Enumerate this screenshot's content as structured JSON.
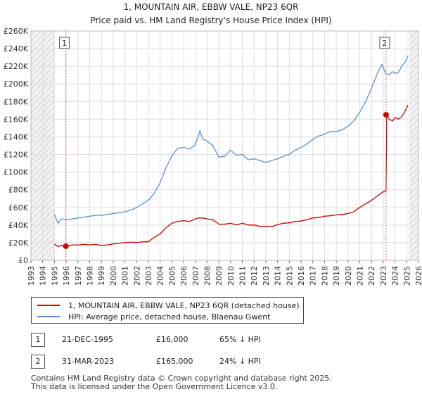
{
  "chart_data": {
    "type": "line",
    "title": "1, MOUNTAIN AIR, EBBW VALE, NP23 6QR",
    "subtitle": "Price paid vs. HM Land Registry's House Price Index (HPI)",
    "xlim": [
      1993,
      2026
    ],
    "ylim": [
      0,
      260000
    ],
    "x_ticks": [
      1993,
      1994,
      1995,
      1996,
      1997,
      1998,
      1999,
      2000,
      2001,
      2002,
      2003,
      2004,
      2005,
      2006,
      2007,
      2008,
      2009,
      2010,
      2011,
      2012,
      2013,
      2014,
      2015,
      2016,
      2017,
      2018,
      2019,
      2020,
      2021,
      2022,
      2023,
      2024,
      2025,
      2026
    ],
    "y_ticks": [
      {
        "value": 0,
        "label": "£0"
      },
      {
        "value": 20000,
        "label": "£20K"
      },
      {
        "value": 40000,
        "label": "£40K"
      },
      {
        "value": 60000,
        "label": "£60K"
      },
      {
        "value": 80000,
        "label": "£80K"
      },
      {
        "value": 100000,
        "label": "£100K"
      },
      {
        "value": 120000,
        "label": "£120K"
      },
      {
        "value": 140000,
        "label": "£140K"
      },
      {
        "value": 160000,
        "label": "£160K"
      },
      {
        "value": 180000,
        "label": "£180K"
      },
      {
        "value": 200000,
        "label": "£200K"
      },
      {
        "value": 220000,
        "label": "£220K"
      },
      {
        "value": 240000,
        "label": "£240K"
      },
      {
        "value": 260000,
        "label": "£260K"
      }
    ],
    "grid": true,
    "hatched_ranges": [
      [
        1993,
        1995.0
      ],
      [
        2025.2,
        2026
      ]
    ],
    "series": [
      {
        "name": "1, MOUNTAIN AIR, EBBW VALE, NP23 6QR (detached house)",
        "color": "#cc0000",
        "x": [
          1995.0,
          1995.3,
          1995.6,
          1995.97,
          1996.5,
          1997,
          1997.5,
          1998,
          1998.5,
          1999,
          1999.5,
          2000,
          2000.5,
          2001,
          2001.5,
          2002,
          2002.5,
          2003,
          2003.5,
          2004,
          2004.5,
          2005,
          2005.5,
          2006,
          2006.5,
          2007,
          2007.3,
          2007.6,
          2008,
          2008.5,
          2009,
          2009.5,
          2010,
          2010.5,
          2011,
          2011.5,
          2012,
          2012.5,
          2013,
          2013.5,
          2014,
          2014.5,
          2015,
          2015.5,
          2016,
          2016.5,
          2017,
          2017.5,
          2018,
          2018.5,
          2019,
          2019.5,
          2020,
          2020.5,
          2021,
          2021.5,
          2022,
          2022.5,
          2022.9,
          2023.24,
          2023.3,
          2023.5,
          2023.8,
          2024,
          2024.3,
          2024.6,
          2024.9,
          2025.1
        ],
        "y": [
          18500,
          15500,
          17000,
          16000,
          17500,
          17500,
          18000,
          17500,
          18000,
          17000,
          17500,
          18500,
          19500,
          20000,
          20500,
          20000,
          21000,
          21000,
          26000,
          30000,
          37000,
          42000,
          44000,
          45000,
          44000,
          47000,
          48000,
          48000,
          47000,
          46000,
          41000,
          41000,
          42000,
          40000,
          42000,
          40000,
          40000,
          38500,
          38500,
          38000,
          40500,
          42000,
          42500,
          44000,
          44500,
          46000,
          48000,
          48500,
          50000,
          50500,
          51500,
          52000,
          53000,
          55000,
          60000,
          64000,
          68000,
          73000,
          77000,
          79000,
          165000,
          160000,
          158000,
          162000,
          160000,
          163000,
          170000,
          176000
        ]
      },
      {
        "name": "HPI: Average price, detached house, Blaenau Gwent",
        "color": "#5b8fd1",
        "x": [
          1995.0,
          1995.3,
          1995.6,
          1996,
          1996.5,
          1997,
          1997.5,
          1998,
          1998.5,
          1999,
          1999.5,
          2000,
          2000.5,
          2001,
          2001.5,
          2002,
          2002.5,
          2003,
          2003.5,
          2004,
          2004.5,
          2005,
          2005.5,
          2006,
          2006.5,
          2007,
          2007.4,
          2007.6,
          2008,
          2008.5,
          2009,
          2009.5,
          2010,
          2010.5,
          2011,
          2011.5,
          2012,
          2012.5,
          2013,
          2013.5,
          2014,
          2014.5,
          2015,
          2015.5,
          2016,
          2016.5,
          2017,
          2017.5,
          2018,
          2018.5,
          2019,
          2019.5,
          2020,
          2020.5,
          2021,
          2021.5,
          2022,
          2022.5,
          2022.9,
          2023.2,
          2023.5,
          2023.8,
          2024,
          2024.3,
          2024.6,
          2024.9,
          2025.1
        ],
        "y": [
          52000,
          42000,
          47000,
          46000,
          47000,
          48000,
          49000,
          50000,
          51000,
          51000,
          52000,
          53000,
          54000,
          55000,
          57000,
          60000,
          64000,
          68000,
          76000,
          88000,
          105000,
          118000,
          127000,
          128000,
          126000,
          131000,
          147000,
          138000,
          135000,
          130000,
          117000,
          118000,
          125000,
          119000,
          120000,
          114000,
          115000,
          113000,
          111000,
          113000,
          115000,
          118000,
          120000,
          125000,
          128000,
          132000,
          137000,
          141000,
          143000,
          146000,
          146000,
          148000,
          152000,
          158000,
          168000,
          180000,
          195000,
          212000,
          222000,
          212000,
          210000,
          214000,
          212000,
          213000,
          221000,
          225000,
          232000
        ]
      }
    ],
    "annotations": [
      {
        "label": "1",
        "x": 1995.97,
        "y": 16000
      },
      {
        "label": "2",
        "x": 2023.24,
        "y": 165000
      }
    ]
  },
  "legend": {
    "items": [
      {
        "label": "1, MOUNTAIN AIR, EBBW VALE, NP23 6QR (detached house)",
        "color": "#cc0000"
      },
      {
        "label": "HPI: Average price, detached house, Blaenau Gwent",
        "color": "#5b8fd1"
      }
    ]
  },
  "sales": [
    {
      "num": "1",
      "date": "21-DEC-1995",
      "price": "£16,000",
      "hpi": "65% ↓ HPI"
    },
    {
      "num": "2",
      "date": "31-MAR-2023",
      "price": "£165,000",
      "hpi": "24% ↓ HPI"
    }
  ],
  "footer": {
    "line1": "Contains HM Land Registry data © Crown copyright and database right 2025.",
    "line2": "This data is licensed under the Open Government Licence v3.0."
  }
}
